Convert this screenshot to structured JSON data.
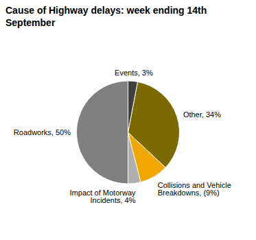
{
  "chart_data": {
    "type": "pie",
    "title": "Cause of Highway delays: week ending 14th September",
    "categories": [
      "Roadworks, 50%",
      "Impact of Motorway\nIncidents, 4%",
      "Collisions and Vehicle\nBreakdowns, (9%)",
      "Other, 34%",
      "Events, 3%"
    ],
    "values": [
      50,
      4,
      9,
      34,
      3
    ],
    "colors": [
      "#808080",
      "#b0b0b0",
      "#f0a800",
      "#7a6a00",
      "#404040"
    ]
  }
}
